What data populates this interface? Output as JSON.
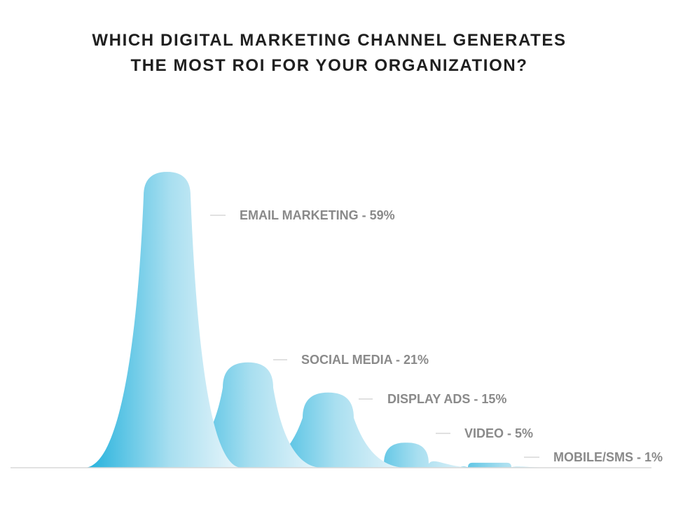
{
  "title_lines": [
    "WHICH DIGITAL MARKETING CHANNEL GENERATES",
    "THE MOST ROI FOR YOUR ORGANIZATION?"
  ],
  "colors": {
    "peak_dark": "#1fb0dc",
    "peak_light": "#eaf6fb",
    "label": "#8a8a8a",
    "baseline": "#d8d8d8",
    "title": "#1f1f1f"
  },
  "chart_data": {
    "type": "area",
    "title": "WHICH DIGITAL MARKETING CHANNEL GENERATES THE MOST ROI FOR YOUR ORGANIZATION?",
    "categories": [
      "EMAIL MARKETING",
      "SOCIAL MEDIA",
      "DISPLAY ADS",
      "VIDEO",
      "MOBILE/SMS"
    ],
    "values": [
      59,
      21,
      15,
      5,
      1
    ],
    "unit": "%",
    "labels": [
      "EMAIL MARKETING - 59%",
      "SOCIAL MEDIA - 21%",
      "DISPLAY ADS - 15%",
      "VIDEO - 5%",
      "MOBILE/SMS - 1%"
    ],
    "grid": false,
    "legend": "none"
  }
}
